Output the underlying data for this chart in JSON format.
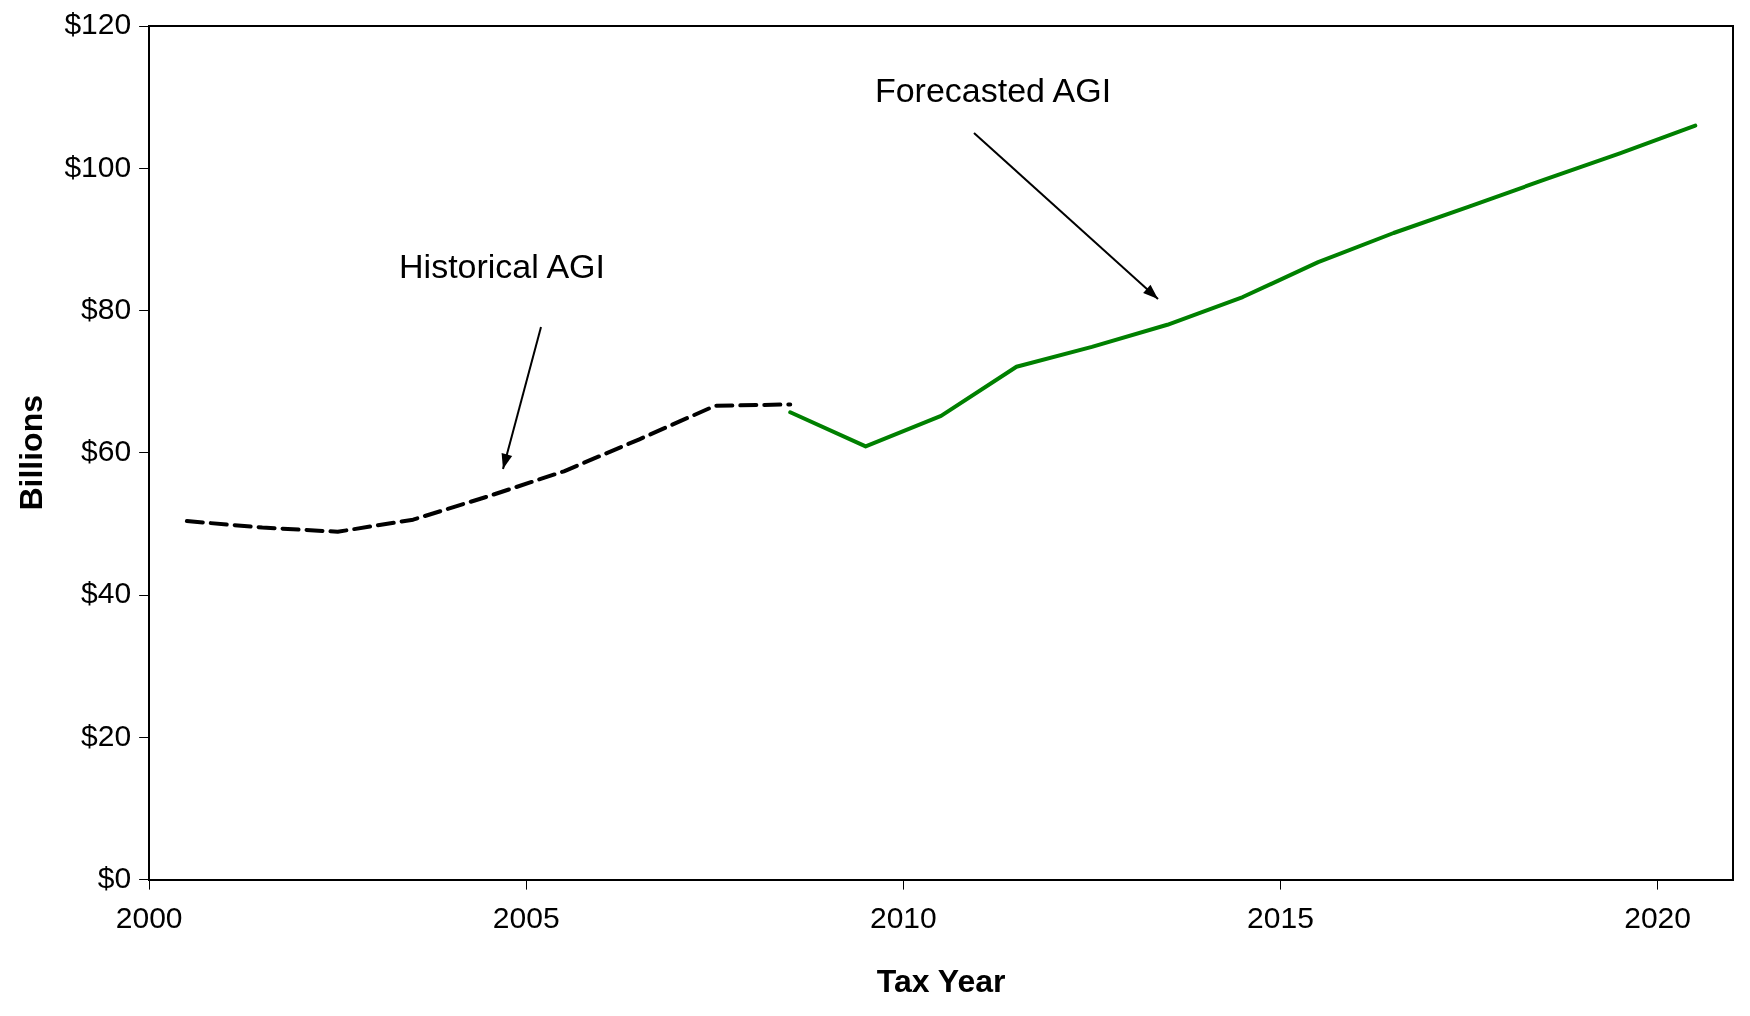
{
  "chart_data": {
    "type": "line",
    "xlabel": "Tax Year",
    "ylabel": "Billions",
    "xlim": [
      2000,
      2021
    ],
    "xticks": [
      2000,
      2005,
      2010,
      2015,
      2020
    ],
    "ylim": [
      0,
      120
    ],
    "yticks": [
      {
        "value": 0,
        "label": "$0"
      },
      {
        "value": 20,
        "label": "$20"
      },
      {
        "value": 40,
        "label": "$40"
      },
      {
        "value": 60,
        "label": "$60"
      },
      {
        "value": 80,
        "label": "$80"
      },
      {
        "value": 100,
        "label": "$100"
      },
      {
        "value": 120,
        "label": "$120"
      }
    ],
    "grid": false,
    "legend": false,
    "marker": "none",
    "series": [
      {
        "color": "#000000",
        "line_style": "dashed",
        "x": [
          2000.5,
          2001.5,
          2002.5,
          2003.5,
          2004.5,
          2005.5,
          2006.5,
          2007.5,
          2008.5
        ],
        "values": [
          50.4,
          49.5,
          48.9,
          50.6,
          53.9,
          57.4,
          61.9,
          66.6,
          66.8
        ]
      },
      {
        "color": "#008000",
        "line_style": "solid",
        "x": [
          2008.5,
          2009.5,
          2010.5,
          2011.5,
          2012.5,
          2013.5,
          2014.5,
          2015.5,
          2016.5,
          2017.5,
          2018.5,
          2019.5,
          2020.5
        ],
        "values": [
          65.7,
          60.9,
          65.2,
          72.1,
          74.9,
          78,
          81.9,
          86.8,
          90.9,
          94.6,
          98.4,
          102.1,
          106
        ]
      }
    ],
    "annotations": [
      "Historical AGI",
      "Forecasted AGI"
    ]
  }
}
